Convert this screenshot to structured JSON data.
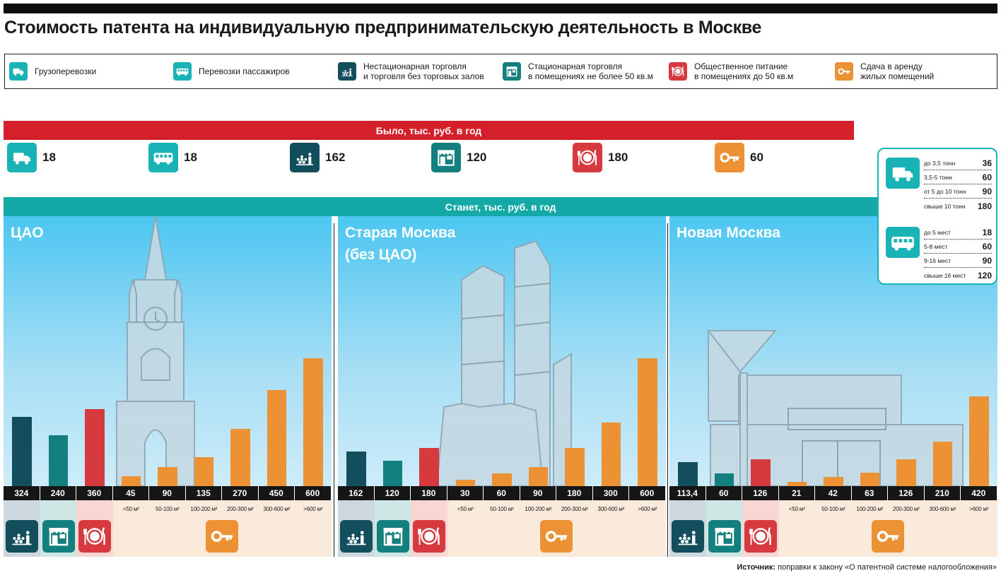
{
  "title": "Стоимость патента на индивидуальную предпринимательскую деятельность в Москве",
  "legend": [
    {
      "label": "Грузоперевозки",
      "icon": "truck-icon",
      "color": "#19b3b5"
    },
    {
      "label": "Перевозки пассажиров",
      "icon": "bus-icon",
      "color": "#19b3b5"
    },
    {
      "label": "Нестационарная торговля\nи торговля без торговых залов",
      "icon": "kiosk-icon",
      "color": "#124e5c"
    },
    {
      "label": "Стационарная торговля\nв помещениях не более 50 кв.м",
      "icon": "store-icon",
      "color": "#13807f"
    },
    {
      "label": "Общественное питание\nв помещениях до 50 кв.м",
      "icon": "plate-icon",
      "color": "#d63a3f"
    },
    {
      "label": "Сдача в аренду\nжилых помещений",
      "icon": "key-icon",
      "color": "#ec9234"
    }
  ],
  "was": {
    "header": "Было, тыс. руб. в год",
    "items": [
      {
        "icon": "truck-icon",
        "value": "18"
      },
      {
        "icon": "bus-icon",
        "value": "18"
      },
      {
        "icon": "kiosk-icon",
        "value": "162"
      },
      {
        "icon": "store-icon",
        "value": "120"
      },
      {
        "icon": "plate-icon",
        "value": "180"
      },
      {
        "icon": "key-icon",
        "value": "60"
      }
    ]
  },
  "will_header": "Станет, тыс. руб. в год",
  "transport": {
    "truck": [
      {
        "label": "до 3,5 тонн",
        "value": "36"
      },
      {
        "label": "3,5-5 тонн",
        "value": "60"
      },
      {
        "label": "от 5 до 10 тонн",
        "value": "90"
      },
      {
        "label": "свыше 10 тонн",
        "value": "180"
      }
    ],
    "bus": [
      {
        "label": "до 5 мест",
        "value": "18"
      },
      {
        "label": "5-8 мест",
        "value": "60"
      },
      {
        "label": "9-16 мест",
        "value": "90"
      },
      {
        "label": "свыше 16 мест",
        "value": "120"
      }
    ]
  },
  "categories": [
    "",
    "",
    "",
    "<50 м²",
    "50-100 м²",
    "100-200 м²",
    "200-300 м²",
    "300-600 м²",
    ">600 м²"
  ],
  "colors": {
    "kiosk": "#124e5c",
    "store": "#13807f",
    "plate": "#d63a3f",
    "rent": "#ec9234",
    "was_header": "#d3202b",
    "will_header": "#14a9a7"
  },
  "chart_data": [
    {
      "type": "bar",
      "title": "ЦАО",
      "categories": [
        "",
        "",
        "",
        "<50 м²",
        "50-100 м²",
        "100-200 м²",
        "200-300 м²",
        "300-600 м²",
        ">600 м²"
      ],
      "values": [
        324,
        240,
        360,
        45,
        90,
        135,
        270,
        450,
        600
      ],
      "labels": [
        "324",
        "240",
        "360",
        "45",
        "90",
        "135",
        "270",
        "450",
        "600"
      ],
      "ylim": [
        0,
        600
      ]
    },
    {
      "type": "bar",
      "title": "Старая Москва\n(без ЦАО)",
      "categories": [
        "",
        "",
        "",
        "<50 м²",
        "50-100 м²",
        "100-200 м²",
        "200-300 м²",
        "300-600 м²",
        ">600 м²"
      ],
      "values": [
        162,
        120,
        180,
        30,
        60,
        90,
        180,
        300,
        600
      ],
      "labels": [
        "162",
        "120",
        "180",
        "30",
        "60",
        "90",
        "180",
        "300",
        "600"
      ],
      "ylim": [
        0,
        600
      ]
    },
    {
      "type": "bar",
      "title": "Новая Москва",
      "categories": [
        "",
        "",
        "",
        "<50 м²",
        "50-100 м²",
        "100-200 м²",
        "200-300 м²",
        "300-600 м²",
        ">600 м²"
      ],
      "values": [
        113.4,
        60,
        126,
        21,
        42,
        63,
        126,
        210,
        420
      ],
      "labels": [
        "113,4",
        "60",
        "126",
        "21",
        "42",
        "63",
        "126",
        "210",
        "420"
      ],
      "ylim": [
        0,
        600
      ]
    }
  ],
  "source": {
    "label": "Источник:",
    "text": " поправки к закону «О патентной системе налогообложения»"
  }
}
